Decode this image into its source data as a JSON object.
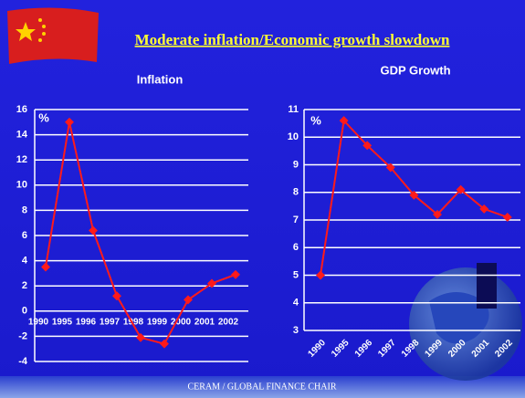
{
  "slide_title": "Moderate inflation/Economic growth slowdown",
  "footer": "CERAM / GLOBAL FINANCE CHAIR",
  "chart_data": [
    {
      "type": "line",
      "title": "Inflation",
      "unit_label": "%",
      "categories": [
        "1990",
        "1995",
        "1996",
        "1997",
        "1998",
        "1999",
        "2000",
        "2001",
        "2002"
      ],
      "values": [
        3.5,
        15.0,
        6.4,
        1.2,
        -2.1,
        -2.6,
        0.9,
        2.2,
        2.9
      ],
      "color": "#ff1a1a",
      "ylim": [
        -4,
        16
      ],
      "yticks": [
        -4,
        -2,
        0,
        2,
        4,
        6,
        8,
        10,
        12,
        14,
        16
      ],
      "grid": true
    },
    {
      "type": "line",
      "title": "GDP Growth",
      "unit_label": "%",
      "categories": [
        "1990",
        "1995",
        "1996",
        "1997",
        "1998",
        "1999",
        "2000",
        "2001",
        "2002"
      ],
      "values": [
        5.0,
        10.6,
        9.7,
        8.9,
        7.9,
        7.2,
        8.1,
        7.4,
        7.1
      ],
      "color": "#ff1a1a",
      "ylim": [
        3,
        11
      ],
      "yticks": [
        3,
        4,
        5,
        6,
        7,
        8,
        9,
        10,
        11
      ],
      "grid": true
    }
  ]
}
